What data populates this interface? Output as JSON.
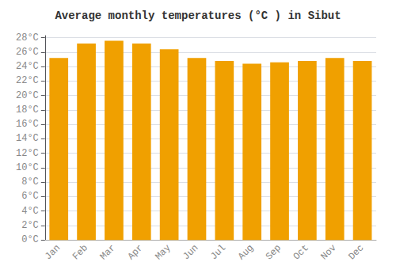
{
  "chart_data": {
    "type": "bar",
    "title": "Average monthly temperatures (°C ) in Sibut",
    "categories": [
      "Jan",
      "Feb",
      "Mar",
      "Apr",
      "May",
      "Jun",
      "Jul",
      "Aug",
      "Sep",
      "Oct",
      "Nov",
      "Dec"
    ],
    "values": [
      25.2,
      27.2,
      27.6,
      27.2,
      26.4,
      25.2,
      24.8,
      24.4,
      24.6,
      24.8,
      25.2,
      24.8
    ],
    "color": "#F0A000",
    "ylim": [
      0,
      28.3
    ],
    "yticks": [
      {
        "value": 0,
        "label": "0°C"
      },
      {
        "value": 2,
        "label": "2°C"
      },
      {
        "value": 4,
        "label": "4°C"
      },
      {
        "value": 6,
        "label": "6°C"
      },
      {
        "value": 8,
        "label": "8°C"
      },
      {
        "value": 10,
        "label": "10°C"
      },
      {
        "value": 12,
        "label": "12°C"
      },
      {
        "value": 14,
        "label": "14°C"
      },
      {
        "value": 16,
        "label": "16°C"
      },
      {
        "value": 18,
        "label": "18°C"
      },
      {
        "value": 20,
        "label": "20°C"
      },
      {
        "value": 22,
        "label": "22°C"
      },
      {
        "value": 24,
        "label": "24°C"
      },
      {
        "value": 26,
        "label": "26°C"
      },
      {
        "value": 28,
        "label": "28°C"
      }
    ],
    "grid": true
  }
}
